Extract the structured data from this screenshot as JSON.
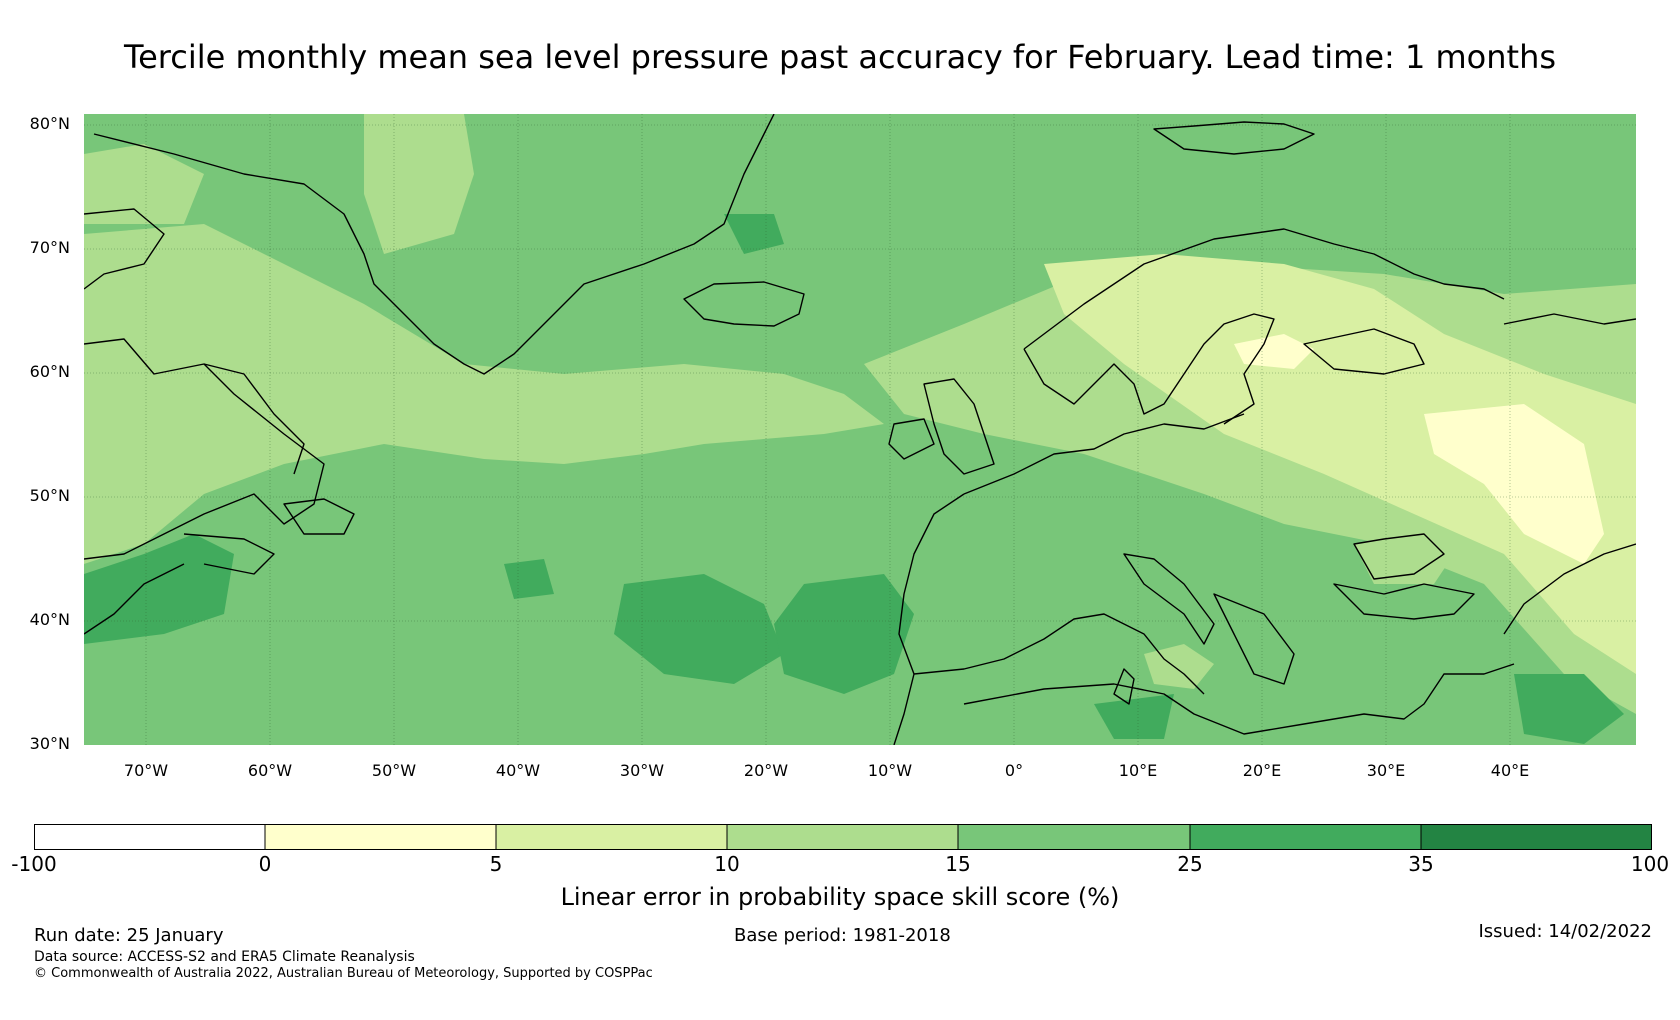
{
  "title": "Tercile monthly mean sea level pressure past accuracy for February. Lead time: 1 months",
  "map": {
    "lat_labels": [
      "80°N",
      "70°N",
      "60°N",
      "50°N",
      "40°N",
      "30°N"
    ],
    "lon_labels": [
      "70°W",
      "60°W",
      "50°W",
      "40°W",
      "30°W",
      "20°W",
      "10°W",
      "0°",
      "10°E",
      "20°E",
      "30°E",
      "40°E"
    ],
    "lat_range": [
      30,
      80.9
    ],
    "lon_range": [
      -75,
      50
    ]
  },
  "colorbar": {
    "ticks": [
      "-100",
      "0",
      "5",
      "10",
      "15",
      "25",
      "35",
      "100"
    ],
    "colors": [
      "#ffffff",
      "#ffffcc",
      "#d9f0a3",
      "#addd8e",
      "#78c679",
      "#41ab5d",
      "#238443"
    ],
    "label": "Linear error in probability space skill score (%)"
  },
  "footer": {
    "run_date": "Run date: 25 January",
    "base_period": "Base period: 1981-2018",
    "issued": "Issued: 14/02/2022",
    "data_source": "Data source: ACCESS-S2 and ERA5 Climate Reanalysis",
    "copyright": "© Commonwealth of Australia 2022, Australian Bureau of Meteorology, Supported by COSPPac"
  }
}
